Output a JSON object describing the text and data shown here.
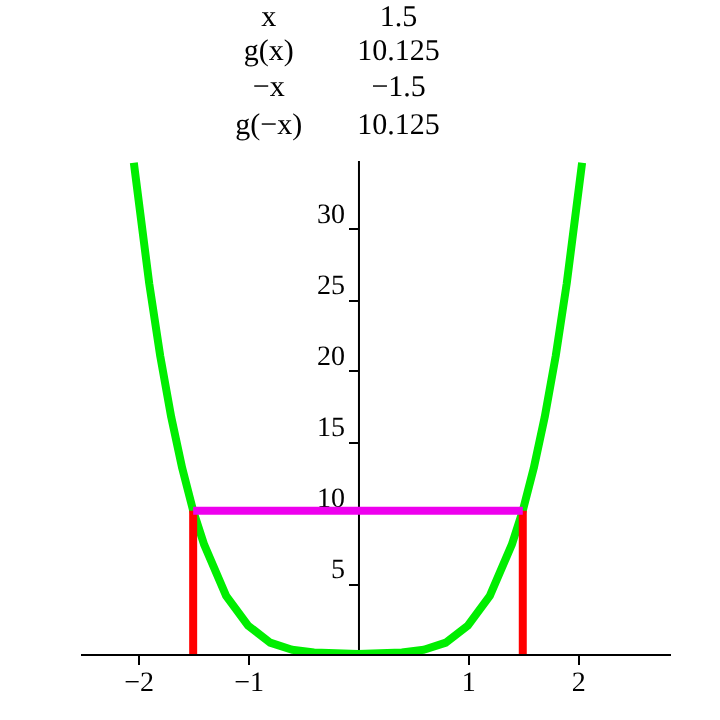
{
  "chart_data": {
    "type": "line",
    "xlim": [
      -2.53,
      2.84
    ],
    "ylim": [
      0,
      34.8
    ],
    "xticks": [
      -2,
      -1,
      1,
      2
    ],
    "yticks": [
      5,
      10,
      15,
      20,
      25,
      30
    ],
    "grid": false,
    "annotations": [
      "x",
      "1.5",
      "g(x)",
      "10.125",
      "−x",
      "−1.5",
      "g(−x)",
      "10.125"
    ],
    "series": [
      {
        "color": "#00ee00",
        "x": [
          -2.04,
          -1.9,
          -1.8,
          -1.7,
          -1.6,
          -1.5,
          -1.4,
          -1.2,
          -1.0,
          -0.8,
          -0.6,
          -0.4,
          0,
          0.4,
          0.6,
          0.8,
          1.0,
          1.2,
          1.4,
          1.5,
          1.6,
          1.7,
          1.8,
          1.9,
          2.04
        ],
        "values": [
          34.6,
          26.1,
          21.0,
          16.7,
          13.1,
          10.1,
          7.7,
          4.1,
          2.0,
          0.8,
          0.3,
          0.1,
          0,
          0.1,
          0.3,
          0.8,
          2.0,
          4.1,
          7.7,
          10.1,
          13.1,
          16.7,
          21.0,
          26.1,
          34.6
        ]
      },
      {
        "color": "#ff0000",
        "x": [
          -1.5,
          -1.5
        ],
        "values": [
          0,
          10.1
        ]
      },
      {
        "color": "#ff0000",
        "x": [
          1.5,
          1.5
        ],
        "values": [
          0,
          10.1
        ]
      },
      {
        "color": "#ee00ee",
        "x": [
          -1.5,
          1.5
        ],
        "values": [
          10.1,
          10.1
        ]
      }
    ]
  }
}
